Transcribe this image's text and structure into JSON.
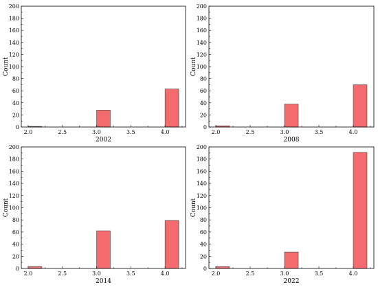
{
  "chart_data": [
    {
      "type": "bar",
      "xlabel": "2002",
      "ylabel": "Count",
      "x": [
        2.0,
        3.0,
        4.0
      ],
      "values": [
        1,
        28,
        63
      ],
      "bin_width": 0.2,
      "xlim": [
        1.9,
        4.3
      ],
      "ylim": [
        0,
        200
      ],
      "xticks": [
        "2.0",
        "2.5",
        "3.0",
        "3.5",
        "4.0"
      ],
      "yticks": [
        "0",
        "20",
        "40",
        "60",
        "80",
        "100",
        "120",
        "140",
        "160",
        "180",
        "200"
      ],
      "bar_color": "#f46b6e",
      "grid": false
    },
    {
      "type": "bar",
      "xlabel": "2008",
      "ylabel": "Count",
      "x": [
        2.0,
        3.0,
        4.0
      ],
      "values": [
        2,
        38,
        70
      ],
      "bin_width": 0.2,
      "xlim": [
        1.9,
        4.3
      ],
      "ylim": [
        0,
        200
      ],
      "xticks": [
        "2.0",
        "2.5",
        "3.0",
        "3.5",
        "4.0"
      ],
      "yticks": [
        "0",
        "20",
        "40",
        "60",
        "80",
        "100",
        "120",
        "140",
        "160",
        "180",
        "200"
      ],
      "bar_color": "#f46b6e",
      "grid": false
    },
    {
      "type": "bar",
      "xlabel": "2014",
      "ylabel": "Count",
      "x": [
        2.0,
        3.0,
        4.0
      ],
      "values": [
        3,
        62,
        79
      ],
      "bin_width": 0.2,
      "xlim": [
        1.9,
        4.3
      ],
      "ylim": [
        0,
        200
      ],
      "xticks": [
        "2.0",
        "2.5",
        "3.0",
        "3.5",
        "4.0"
      ],
      "yticks": [
        "0",
        "20",
        "40",
        "60",
        "80",
        "100",
        "120",
        "140",
        "160",
        "180",
        "200"
      ],
      "bar_color": "#f46b6e",
      "grid": false
    },
    {
      "type": "bar",
      "xlabel": "2022",
      "ylabel": "Count",
      "x": [
        2.0,
        3.0,
        4.0
      ],
      "values": [
        3,
        27,
        191
      ],
      "bin_width": 0.2,
      "xlim": [
        1.9,
        4.3
      ],
      "ylim": [
        0,
        200
      ],
      "xticks": [
        "2.0",
        "2.5",
        "3.0",
        "3.5",
        "4.0"
      ],
      "yticks": [
        "0",
        "20",
        "40",
        "60",
        "80",
        "100",
        "120",
        "140",
        "160",
        "180",
        "200"
      ],
      "bar_color": "#f46b6e",
      "grid": false
    }
  ]
}
